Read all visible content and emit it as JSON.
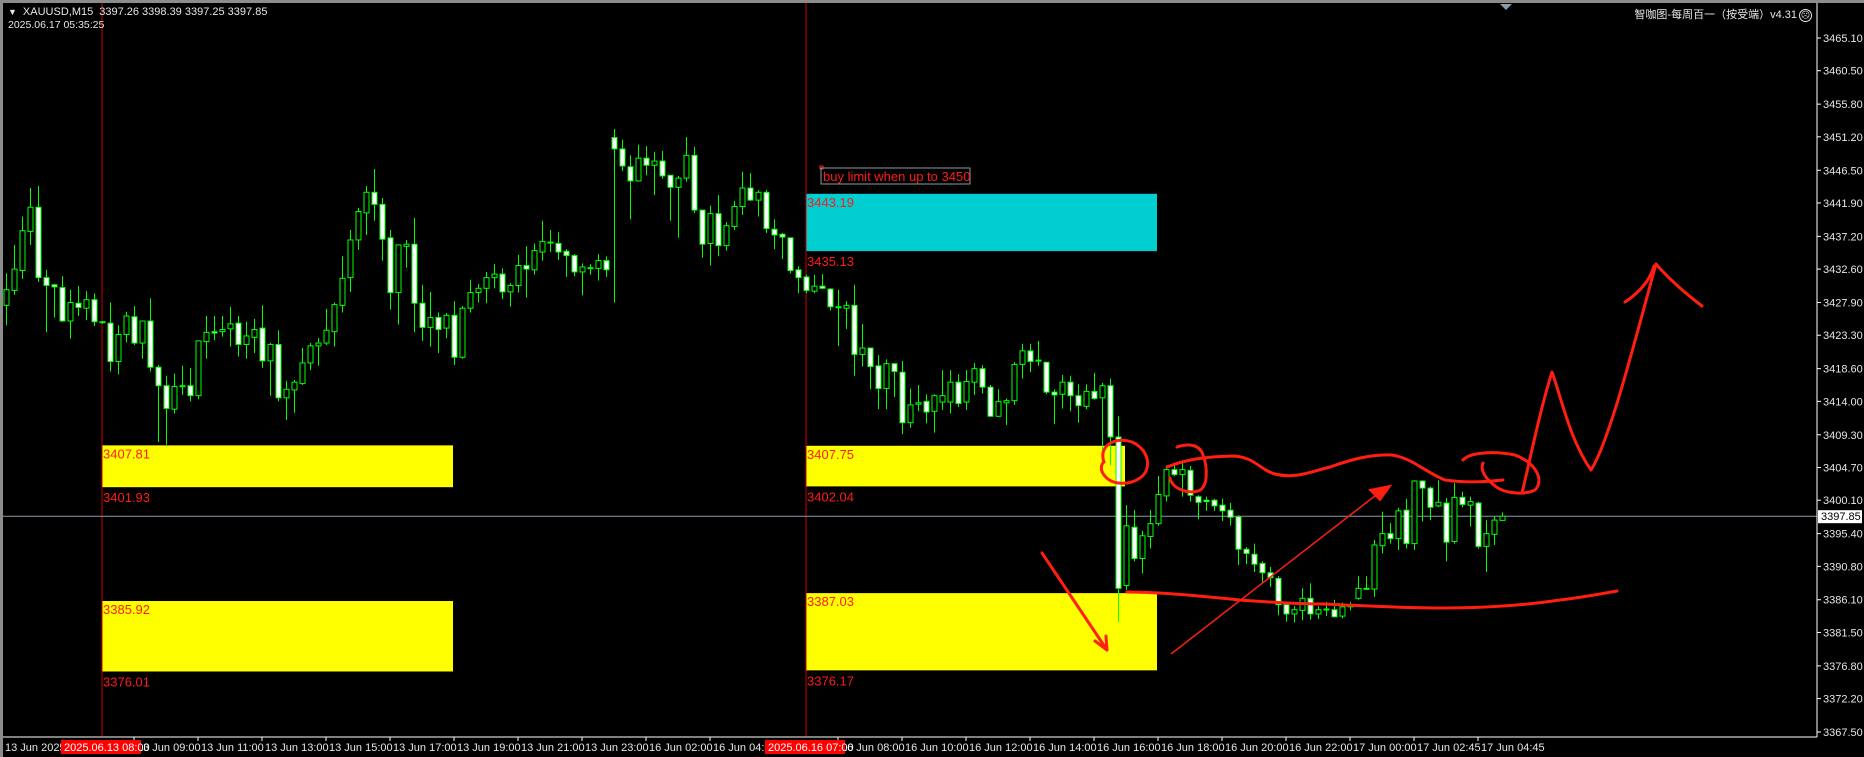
{
  "header": {
    "symbol_timeframe": "XAUUSD,M15",
    "ohlc": "3397.26 3398.39 3397.25 3397.85",
    "server_time": "2025.06.17 05:35:25",
    "indicator_label": "智咖图-每周百一（按受端）v4.31",
    "indicator_icon": "frown-face-icon"
  },
  "colors": {
    "background": "#000000",
    "candle_outline": "#00ff00",
    "bear_body": "#ffffff",
    "bull_body": "#000000",
    "zone_yellow": "#ffff00",
    "zone_cyan": "#00ced1",
    "annotation": "#ff1e10",
    "separator": "#d00000",
    "price_line": "#8a9aa8"
  },
  "annotation_text": "buy limit when up to 3450",
  "current_price": "3397.85",
  "chart_data": {
    "type": "candlestick",
    "timeframe": "M15",
    "ylim": [
      3367.5,
      3465.1
    ],
    "grid": false,
    "yticks": [
      "3465.10",
      "3460.50",
      "3455.80",
      "3451.20",
      "3446.50",
      "3441.90",
      "3437.20",
      "3432.60",
      "3427.90",
      "3423.30",
      "3418.60",
      "3414.00",
      "3409.30",
      "3404.70",
      "3400.10",
      "3395.40",
      "3390.80",
      "3386.10",
      "3381.50",
      "3376.80",
      "3372.20",
      "3367.50"
    ],
    "xticks": [
      "13 Jun 2025",
      "13 Jun 09:00",
      "13 Jun 11:00",
      "13 Jun 13:00",
      "13 Jun 15:00",
      "13 Jun 17:00",
      "13 Jun 19:00",
      "13 Jun 21:00",
      "13 Jun 23:00",
      "16 Jun 02:00",
      "16 Jun 04:00",
      "16 Jun 08:00",
      "16 Jun 10:00",
      "16 Jun 12:00",
      "16 Jun 14:00",
      "16 Jun 16:00",
      "16 Jun 18:00",
      "16 Jun 20:00",
      "16 Jun 22:00",
      "17 Jun 00:00",
      "17 Jun 02:45",
      "17 Jun 04:45"
    ],
    "separator_labels": [
      "2025.06.13 08:00",
      "2025.06.16 07:00"
    ],
    "ohlc_columns": [
      "open",
      "high",
      "low",
      "close"
    ],
    "ohlc": [
      [
        3427.5,
        3432.0,
        3424.7,
        3429.7
      ],
      [
        3429.6,
        3436.0,
        3429.0,
        3432.6
      ],
      [
        3432.4,
        3440.0,
        3431.2,
        3438.0
      ],
      [
        3437.9,
        3444.0,
        3436.0,
        3441.3
      ],
      [
        3441.3,
        3444.3,
        3430.8,
        3431.4
      ],
      [
        3431.4,
        3432.5,
        3423.7,
        3430.3
      ],
      [
        3430.4,
        3430.5,
        3425.8,
        3430.1
      ],
      [
        3430.0,
        3431.6,
        3425.2,
        3425.3
      ],
      [
        3425.3,
        3429.7,
        3422.8,
        3427.9
      ],
      [
        3427.8,
        3430.2,
        3426.0,
        3427.2
      ],
      [
        3427.1,
        3429.5,
        3425.4,
        3428.3
      ],
      [
        3428.3,
        3429.2,
        3424.6,
        3425.2
      ],
      [
        3425.2,
        3425.3,
        3424.9,
        3425.1
      ],
      [
        3425.0,
        3427.9,
        3418.2,
        3419.6
      ],
      [
        3419.6,
        3424.7,
        3417.8,
        3423.4
      ],
      [
        3423.4,
        3426.6,
        3422.3,
        3426.0
      ],
      [
        3425.9,
        3427.4,
        3421.9,
        3422.2
      ],
      [
        3422.2,
        3425.3,
        3420.0,
        3425.3
      ],
      [
        3425.3,
        3428.5,
        3418.2,
        3418.8
      ],
      [
        3418.8,
        3419.1,
        3408.3,
        3416.2
      ],
      [
        3416.2,
        3417.6,
        3407.9,
        3413.0
      ],
      [
        3412.9,
        3417.9,
        3412.3,
        3416.1
      ],
      [
        3416.1,
        3419.0,
        3414.9,
        3416.2
      ],
      [
        3416.2,
        3418.7,
        3414.0,
        3414.8
      ],
      [
        3414.8,
        3422.6,
        3414.3,
        3422.5
      ],
      [
        3422.4,
        3426.0,
        3420.0,
        3423.7
      ],
      [
        3423.8,
        3426.0,
        3422.6,
        3423.6
      ],
      [
        3423.8,
        3426.0,
        3423.1,
        3424.1
      ],
      [
        3424.2,
        3427.3,
        3421.7,
        3424.9
      ],
      [
        3425.0,
        3426.0,
        3420.3,
        3422.0
      ],
      [
        3422.0,
        3425.2,
        3420.0,
        3423.2
      ],
      [
        3423.0,
        3425.6,
        3420.8,
        3424.1
      ],
      [
        3424.3,
        3427.5,
        3418.7,
        3419.7
      ],
      [
        3419.7,
        3422.2,
        3414.8,
        3422.0
      ],
      [
        3422.0,
        3424.0,
        3414.0,
        3414.5
      ],
      [
        3414.5,
        3416.9,
        3411.4,
        3415.7
      ],
      [
        3415.6,
        3417.0,
        3412.4,
        3416.7
      ],
      [
        3416.5,
        3421.5,
        3416.3,
        3419.4
      ],
      [
        3419.4,
        3422.2,
        3418.4,
        3421.8
      ],
      [
        3421.8,
        3422.9,
        3419.0,
        3422.2
      ],
      [
        3422.2,
        3427.0,
        3421.9,
        3424.0
      ],
      [
        3423.8,
        3427.9,
        3421.7,
        3427.6
      ],
      [
        3427.5,
        3434.4,
        3426.5,
        3431.3
      ],
      [
        3431.4,
        3438.1,
        3429.4,
        3436.7
      ],
      [
        3436.7,
        3441.2,
        3435.3,
        3440.7
      ],
      [
        3440.5,
        3444.3,
        3437.4,
        3443.4
      ],
      [
        3443.4,
        3446.7,
        3439.4,
        3441.7
      ],
      [
        3441.7,
        3442.6,
        3433.8,
        3436.8
      ],
      [
        3437.0,
        3438.1,
        3426.9,
        3429.3
      ],
      [
        3429.3,
        3436.0,
        3424.8,
        3436.0
      ],
      [
        3435.8,
        3436.7,
        3432.8,
        3436.1
      ],
      [
        3436.1,
        3439.8,
        3423.7,
        3427.8
      ],
      [
        3427.8,
        3430.4,
        3422.5,
        3424.4
      ],
      [
        3424.4,
        3429.4,
        3421.7,
        3425.8
      ],
      [
        3425.8,
        3426.5,
        3420.8,
        3424.1
      ],
      [
        3424.3,
        3426.4,
        3422.9,
        3426.1
      ],
      [
        3426.1,
        3428.1,
        3419.1,
        3420.2
      ],
      [
        3420.2,
        3427.4,
        3420.0,
        3427.1
      ],
      [
        3427.1,
        3431.1,
        3426.5,
        3429.3
      ],
      [
        3429.3,
        3430.5,
        3427.9,
        3429.9
      ],
      [
        3429.9,
        3432.2,
        3427.8,
        3431.4
      ],
      [
        3431.4,
        3433.3,
        3429.9,
        3431.9
      ],
      [
        3431.9,
        3432.7,
        3428.4,
        3429.4
      ],
      [
        3429.4,
        3430.6,
        3427.3,
        3430.3
      ],
      [
        3430.3,
        3434.6,
        3429.3,
        3433.1
      ],
      [
        3433.1,
        3435.8,
        3428.6,
        3432.6
      ],
      [
        3432.5,
        3436.2,
        3431.8,
        3435.2
      ],
      [
        3435.0,
        3439.4,
        3433.8,
        3436.5
      ],
      [
        3436.4,
        3438.1,
        3435.0,
        3436.3
      ],
      [
        3436.2,
        3437.8,
        3433.9,
        3435.0
      ],
      [
        3435.1,
        3435.4,
        3431.5,
        3434.5
      ],
      [
        3434.5,
        3434.7,
        3431.6,
        3432.2
      ],
      [
        3432.2,
        3433.4,
        3428.9,
        3432.9
      ],
      [
        3432.8,
        3433.3,
        3431.8,
        3432.8
      ],
      [
        3432.7,
        3434.7,
        3431.0,
        3433.8
      ],
      [
        3433.8,
        3434.4,
        3431.5,
        3432.5
      ],
      [
        3451.1,
        3452.3,
        3427.9,
        3449.5
      ],
      [
        3449.5,
        3450.8,
        3446.4,
        3447.1
      ],
      [
        3447.0,
        3448.6,
        3439.6,
        3445.0
      ],
      [
        3445.0,
        3450.1,
        3444.9,
        3448.2
      ],
      [
        3448.2,
        3449.9,
        3445.8,
        3447.2
      ],
      [
        3447.2,
        3449.1,
        3443.0,
        3447.8
      ],
      [
        3447.8,
        3449.2,
        3445.3,
        3445.7
      ],
      [
        3445.8,
        3445.8,
        3439.4,
        3444.1
      ],
      [
        3444.1,
        3445.7,
        3437.0,
        3445.4
      ],
      [
        3445.4,
        3451.2,
        3444.9,
        3448.6
      ],
      [
        3448.6,
        3449.8,
        3440.5,
        3440.9
      ],
      [
        3440.9,
        3440.9,
        3434.2,
        3436.1
      ],
      [
        3436.2,
        3441.5,
        3433.1,
        3440.4
      ],
      [
        3440.4,
        3443.0,
        3434.4,
        3435.9
      ],
      [
        3435.9,
        3439.2,
        3435.2,
        3438.7
      ],
      [
        3438.6,
        3442.2,
        3438.1,
        3441.4
      ],
      [
        3441.4,
        3446.3,
        3440.2,
        3444.0
      ],
      [
        3444.0,
        3446.1,
        3442.2,
        3442.3
      ],
      [
        3442.3,
        3443.7,
        3440.0,
        3443.4
      ],
      [
        3443.4,
        3443.7,
        3437.7,
        3438.3
      ],
      [
        3438.2,
        3439.6,
        3435.4,
        3437.4
      ],
      [
        3437.5,
        3437.7,
        3434.0,
        3437.1
      ],
      [
        3437.0,
        3437.0,
        3432.0,
        3432.4
      ],
      [
        3432.5,
        3433.0,
        3429.2,
        3431.4
      ],
      [
        3431.5,
        3431.8,
        3429.2,
        3429.6
      ],
      [
        3429.5,
        3431.8,
        3429.2,
        3430.2
      ],
      [
        3430.2,
        3431.9,
        3429.8,
        3429.9
      ],
      [
        3429.8,
        3429.9,
        3426.8,
        3427.3
      ],
      [
        3427.3,
        3429.7,
        3421.8,
        3427.2
      ],
      [
        3427.1,
        3428.1,
        3424.2,
        3427.5
      ],
      [
        3427.5,
        3430.4,
        3417.6,
        3420.6
      ],
      [
        3420.6,
        3424.9,
        3418.9,
        3421.5
      ],
      [
        3421.5,
        3421.5,
        3415.7,
        3418.9
      ],
      [
        3419.0,
        3420.5,
        3412.9,
        3415.8
      ],
      [
        3415.8,
        3419.9,
        3412.9,
        3419.3
      ],
      [
        3419.3,
        3419.3,
        3414.6,
        3418.2
      ],
      [
        3418.1,
        3419.7,
        3409.4,
        3411.0
      ],
      [
        3411.0,
        3415.8,
        3410.3,
        3413.5
      ],
      [
        3413.6,
        3416.3,
        3412.6,
        3413.8
      ],
      [
        3414.0,
        3415.0,
        3410.9,
        3412.5
      ],
      [
        3412.6,
        3415.0,
        3409.6,
        3414.8
      ],
      [
        3413.9,
        3418.4,
        3412.8,
        3414.8
      ],
      [
        3413.9,
        3418.4,
        3412.3,
        3416.7
      ],
      [
        3416.7,
        3417.8,
        3413.2,
        3413.7
      ],
      [
        3413.9,
        3418.4,
        3412.8,
        3416.8
      ],
      [
        3416.7,
        3419.4,
        3414.9,
        3418.6
      ],
      [
        3418.6,
        3419.1,
        3415.1,
        3416.0
      ],
      [
        3416.0,
        3416.3,
        3411.8,
        3411.9
      ],
      [
        3411.9,
        3415.7,
        3411.8,
        3414.0
      ],
      [
        3413.8,
        3414.4,
        3410.7,
        3414.1
      ],
      [
        3414.1,
        3419.5,
        3413.5,
        3419.2
      ],
      [
        3419.2,
        3422.1,
        3417.2,
        3421.1
      ],
      [
        3421.1,
        3422.1,
        3418.1,
        3419.6
      ],
      [
        3419.8,
        3422.5,
        3419.0,
        3419.7
      ],
      [
        3419.5,
        3419.5,
        3415.0,
        3415.3
      ],
      [
        3415.3,
        3415.7,
        3410.8,
        3414.9
      ],
      [
        3415.0,
        3417.7,
        3413.0,
        3416.7
      ],
      [
        3416.7,
        3417.6,
        3412.6,
        3414.8
      ],
      [
        3414.8,
        3416.4,
        3411.0,
        3413.4
      ],
      [
        3413.3,
        3416.4,
        3412.9,
        3415.4
      ],
      [
        3415.4,
        3418.0,
        3414.2,
        3414.4
      ],
      [
        3414.5,
        3416.6,
        3405.8,
        3416.2
      ],
      [
        3416.2,
        3417.2,
        3405.0,
        3409.0
      ],
      [
        3409.0,
        3411.9,
        3383.0,
        3387.7
      ],
      [
        3388.1,
        3399.4,
        3387.5,
        3396.5
      ],
      [
        3396.3,
        3398.7,
        3391.5,
        3391.9
      ],
      [
        3391.9,
        3395.8,
        3389.8,
        3395.1
      ],
      [
        3395.0,
        3398.7,
        3393.3,
        3396.8
      ],
      [
        3396.8,
        3403.5,
        3396.5,
        3400.9
      ],
      [
        3400.7,
        3405.0,
        3399.9,
        3404.4
      ],
      [
        3404.4,
        3405.3,
        3403.5,
        3403.7
      ],
      [
        3403.7,
        3405.7,
        3400.6,
        3404.4
      ],
      [
        3404.3,
        3404.9,
        3399.9,
        3400.8
      ],
      [
        3400.6,
        3400.8,
        3397.4,
        3399.8
      ],
      [
        3400.1,
        3400.6,
        3398.6,
        3399.9
      ],
      [
        3400.1,
        3400.3,
        3398.6,
        3399.3
      ],
      [
        3399.4,
        3400.3,
        3397.2,
        3398.6
      ],
      [
        3398.7,
        3399.7,
        3396.5,
        3397.7
      ],
      [
        3397.8,
        3398.0,
        3391.0,
        3393.2
      ],
      [
        3393.2,
        3393.5,
        3391.1,
        3392.6
      ],
      [
        3392.5,
        3394.0,
        3390.0,
        3391.1
      ],
      [
        3391.2,
        3391.5,
        3388.4,
        3389.9
      ],
      [
        3389.9,
        3390.7,
        3387.9,
        3389.2
      ],
      [
        3389.1,
        3389.4,
        3383.9,
        3385.4
      ],
      [
        3385.4,
        3385.8,
        3383.0,
        3384.1
      ],
      [
        3384.1,
        3385.2,
        3382.9,
        3384.7
      ],
      [
        3384.6,
        3387.7,
        3383.2,
        3386.3
      ],
      [
        3386.3,
        3388.4,
        3383.3,
        3384.1
      ],
      [
        3384.1,
        3385.2,
        3383.4,
        3384.7
      ],
      [
        3384.8,
        3385.8,
        3383.8,
        3384.7
      ],
      [
        3384.7,
        3386.1,
        3383.6,
        3383.7
      ],
      [
        3383.8,
        3385.7,
        3383.5,
        3385.1
      ],
      [
        3385.1,
        3385.8,
        3384.6,
        3385.3
      ],
      [
        3386.3,
        3389.4,
        3386.1,
        3387.7
      ],
      [
        3387.7,
        3389.4,
        3387.5,
        3387.6
      ],
      [
        3387.6,
        3394.5,
        3386.5,
        3393.8
      ],
      [
        3393.7,
        3398.5,
        3392.6,
        3395.4
      ],
      [
        3395.4,
        3396.9,
        3394.0,
        3394.7
      ],
      [
        3394.7,
        3399.0,
        3393.1,
        3398.6
      ],
      [
        3398.7,
        3400.3,
        3393.3,
        3394.0
      ],
      [
        3394.0,
        3402.9,
        3393.1,
        3402.8
      ],
      [
        3402.8,
        3402.9,
        3397.1,
        3401.8
      ],
      [
        3401.8,
        3402.0,
        3397.3,
        3399.1
      ],
      [
        3399.3,
        3402.9,
        3399.1,
        3399.8
      ],
      [
        3399.7,
        3400.4,
        3391.5,
        3394.2
      ],
      [
        3394.3,
        3402.5,
        3394.0,
        3400.5
      ],
      [
        3400.5,
        3401.3,
        3399.1,
        3399.5
      ],
      [
        3399.4,
        3400.6,
        3396.4,
        3399.9
      ],
      [
        3399.7,
        3399.9,
        3393.3,
        3393.6
      ],
      [
        3393.6,
        3397.3,
        3390.0,
        3395.4
      ],
      [
        3395.3,
        3397.8,
        3393.8,
        3397.3
      ],
      [
        3397.26,
        3398.39,
        3397.25,
        3397.85
      ]
    ],
    "zones": [
      {
        "top": 3407.81,
        "bottom": 3401.93,
        "label_top": "3407.81",
        "label_bottom": "3401.93",
        "color": "#ffff00"
      },
      {
        "top": 3385.92,
        "bottom": 3376.01,
        "label_top": "3385.92",
        "label_bottom": "3376.01",
        "color": "#ffff00"
      },
      {
        "top": 3443.19,
        "bottom": 3435.13,
        "label_top": "3443.19",
        "label_bottom": "3435.13",
        "color": "#00ced1"
      },
      {
        "top": 3407.75,
        "bottom": 3402.04,
        "label_top": "3407.75",
        "label_bottom": "3402.04",
        "color": "#ffff00"
      },
      {
        "top": 3387.03,
        "bottom": 3376.17,
        "label_top": "3387.03",
        "label_bottom": "3376.17",
        "color": "#ffff00"
      }
    ]
  }
}
